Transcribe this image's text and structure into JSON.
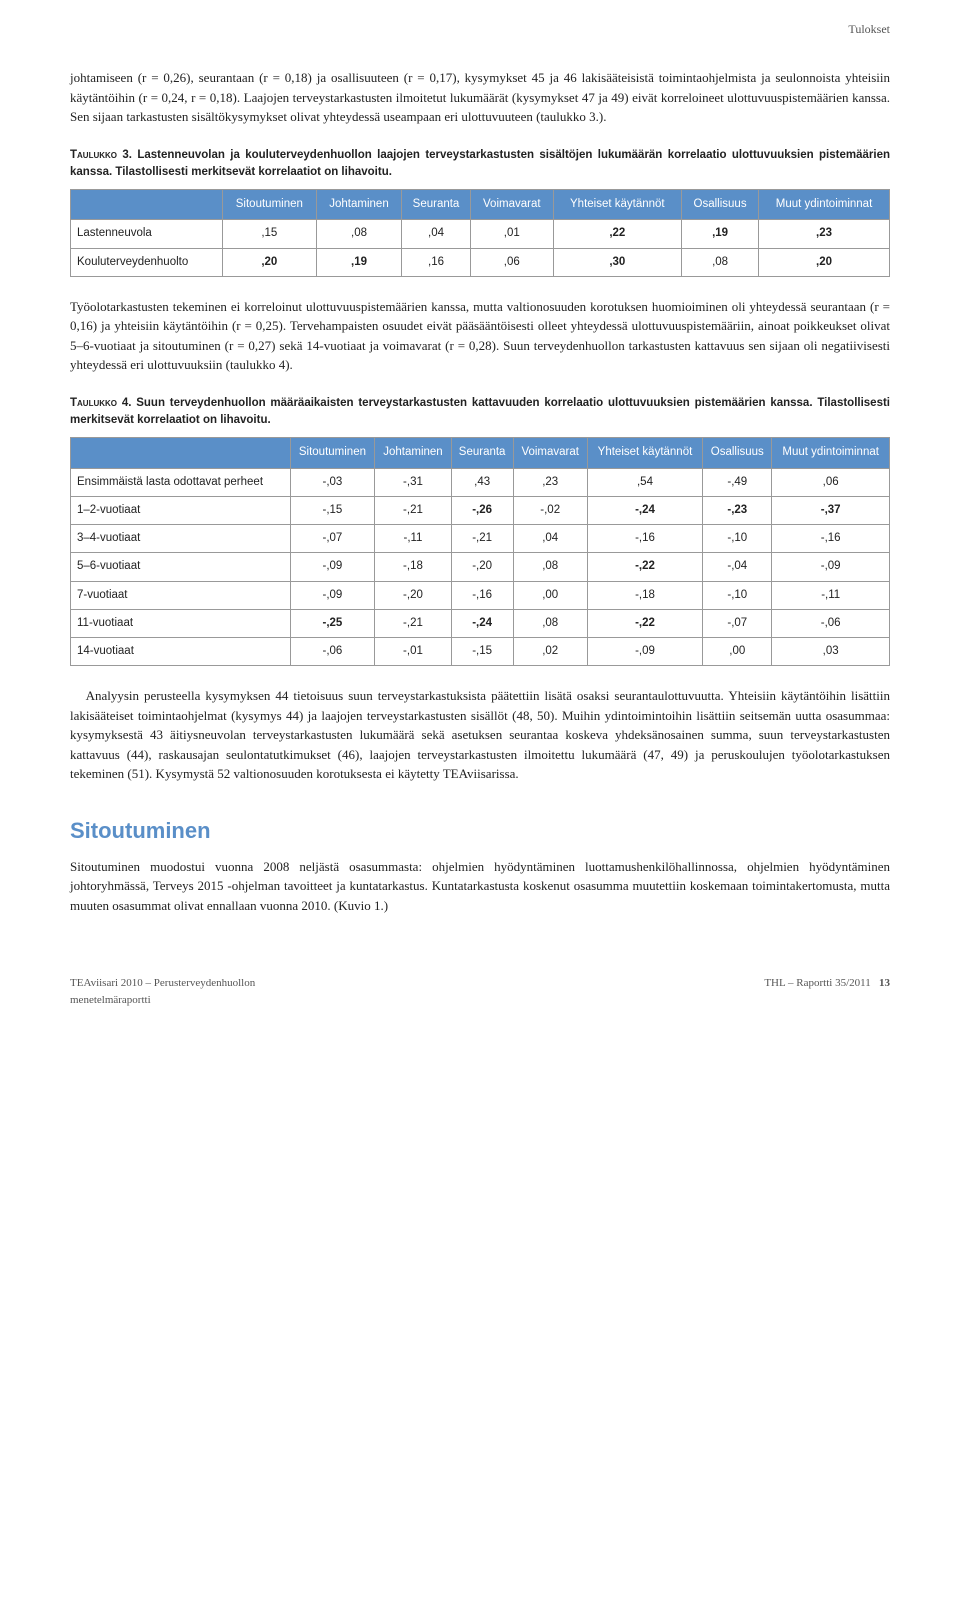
{
  "header": {
    "section": "Tulokset"
  },
  "para1": "johtamiseen (r = 0,26), seurantaan (r = 0,18) ja osallisuuteen (r = 0,17), kysymykset 45 ja 46 lakisääteisistä toimintaohjelmista ja seulonnoista yhteisiin käytäntöihin (r = 0,24, r = 0,18). Laajojen terveystarkastusten ilmoitetut lukumäärät (kysymykset 47 ja 49) eivät korreloineet ulottuvuuspistemäärien kanssa. Sen sijaan tarkastusten sisältökysymykset olivat yhteydessä useampaan eri ulottuvuuteen (taulukko 3.).",
  "table3": {
    "caption_label": "Taulukko 3.",
    "caption_text": " Lastenneuvolan ja kouluterveydenhuollon laajojen terveystarkastusten sisältöjen lukumäärän korrelaatio ulottuvuuksien pistemäärien kanssa. Tilastollisesti merkitsevät korrelaatiot on lihavoitu.",
    "headers": [
      "",
      "Sitoutuminen",
      "Johtaminen",
      "Seuranta",
      "Voimavarat",
      "Yhteiset käytännöt",
      "Osallisuus",
      "Muut ydintoiminnat"
    ],
    "rows": [
      {
        "label": "Lastenneuvola",
        "cells": [
          ",15",
          ",08",
          ",04",
          ",01",
          ",22",
          ",19",
          ",23"
        ],
        "bold": [
          false,
          false,
          false,
          false,
          true,
          true,
          true
        ]
      },
      {
        "label": "Kouluterveydenhuolto",
        "cells": [
          ",20",
          ",19",
          ",16",
          ",06",
          ",30",
          ",08",
          ",20"
        ],
        "bold": [
          true,
          true,
          false,
          false,
          true,
          false,
          true
        ]
      }
    ]
  },
  "para2": "Työolotarkastusten tekeminen ei korreloinut ulottuvuuspistemäärien kanssa, mutta valtionosuuden korotuksen huomioiminen oli yhteydessä seurantaan (r = 0,16) ja yhteisiin käytäntöihin (r = 0,25). Tervehampaisten osuudet eivät pääsääntöisesti olleet yhteydessä ulottuvuuspistemääriin, ainoat poikkeukset olivat 5–6-vuotiaat ja sitoutuminen (r = 0,27) sekä 14-vuotiaat ja voimavarat (r = 0,28). Suun terveydenhuollon tarkastusten kattavuus sen sijaan oli negatiivisesti yhteydessä eri ulottuvuuksiin (taulukko 4).",
  "table4": {
    "caption_label": "Taulukko 4.",
    "caption_text": " Suun terveydenhuollon määräaikaisten terveystarkastusten kattavuuden korrelaatio ulottuvuuksien pistemäärien kanssa. Tilastollisesti merkitsevät korrelaatiot on lihavoitu.",
    "headers": [
      "",
      "Sitoutuminen",
      "Johtaminen",
      "Seuranta",
      "Voimavarat",
      "Yhteiset käytännöt",
      "Osallisuus",
      "Muut ydintoiminnat"
    ],
    "rows": [
      {
        "label": "Ensimmäistä lasta odottavat perheet",
        "cells": [
          "-,03",
          "-,31",
          ",43",
          ",23",
          ",54",
          "-,49",
          ",06"
        ],
        "bold": [
          false,
          false,
          false,
          false,
          false,
          false,
          false
        ]
      },
      {
        "label": "1–2-vuotiaat",
        "cells": [
          "-,15",
          "-,21",
          "-,26",
          "-,02",
          "-,24",
          "-,23",
          "-,37"
        ],
        "bold": [
          false,
          false,
          true,
          false,
          true,
          true,
          true
        ]
      },
      {
        "label": "3–4-vuotiaat",
        "cells": [
          "-,07",
          "-,11",
          "-,21",
          ",04",
          "-,16",
          "-,10",
          "-,16"
        ],
        "bold": [
          false,
          false,
          false,
          false,
          false,
          false,
          false
        ]
      },
      {
        "label": "5–6-vuotiaat",
        "cells": [
          "-,09",
          "-,18",
          "-,20",
          ",08",
          "-,22",
          "-,04",
          "-,09"
        ],
        "bold": [
          false,
          false,
          false,
          false,
          true,
          false,
          false
        ]
      },
      {
        "label": "7-vuotiaat",
        "cells": [
          "-,09",
          "-,20",
          "-,16",
          ",00",
          "-,18",
          "-,10",
          "-,11"
        ],
        "bold": [
          false,
          false,
          false,
          false,
          false,
          false,
          false
        ]
      },
      {
        "label": "11-vuotiaat",
        "cells": [
          "-,25",
          "-,21",
          "-,24",
          ",08",
          "-,22",
          "-,07",
          "-,06"
        ],
        "bold": [
          true,
          false,
          true,
          false,
          true,
          false,
          false
        ]
      },
      {
        "label": "14-vuotiaat",
        "cells": [
          "-,06",
          "-,01",
          "-,15",
          ",02",
          "-,09",
          ",00",
          ",03"
        ],
        "bold": [
          false,
          false,
          false,
          false,
          false,
          false,
          false
        ]
      }
    ]
  },
  "para3": "Analyysin perusteella kysymyksen 44 tietoisuus suun terveystarkastuksista päätettiin lisätä osaksi seurantaulottuvuutta. Yhteisiin käytäntöihin lisättiin lakisääteiset toimintaohjelmat (kysymys 44) ja laajojen terveystarkastusten sisällöt (48, 50). Muihin ydintoimintoihin lisättiin seitsemän uutta osasummaa: kysymyksestä 43 äitiysneuvolаn terveystarkastusten lukumäärä sekä asetuksen seurantaa koskeva yhdeksänosainen summa, suun terveystarkastusten kattavuus (44), raskausajan seulontatutkimukset (46), laajojen terveystarkastusten ilmoitettu lukumäärä (47, 49) ja peruskoulujen työolotarkastuksen tekeminen (51). Kysymystä 52 valtionosuuden korotuksesta ei käytetty TEAviisarissa.",
  "section_heading": "Sitoutuminen",
  "para4": "Sitoutuminen muodostui vuonna 2008 neljästä osasummasta: ohjelmien hyödyntäminen luottamushenkilöhallinnossa, ohjelmien hyödyntäminen johtoryhmässä, Terveys 2015 -ohjelman tavoitteet ja kuntatarkastus. Kuntatarkastusta koskenut osasumma muutettiin koskemaan toimintakertomusta, mutta muuten osasummat olivat ennallaan vuonna 2010. (Kuvio 1.)",
  "footer": {
    "left_line1": "TEAviisari 2010 – Perusterveydenhuollon",
    "left_line2": "menetelmäraportti",
    "right": "THL – Raportti 35/2011",
    "page": "13"
  }
}
